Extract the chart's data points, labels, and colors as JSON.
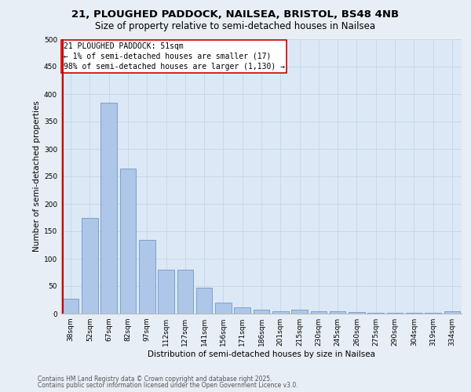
{
  "title_line1": "21, PLOUGHED PADDOCK, NAILSEA, BRISTOL, BS48 4NB",
  "title_line2": "Size of property relative to semi-detached houses in Nailsea",
  "xlabel": "Distribution of semi-detached houses by size in Nailsea",
  "ylabel": "Number of semi-detached properties",
  "categories": [
    "38sqm",
    "52sqm",
    "67sqm",
    "82sqm",
    "97sqm",
    "112sqm",
    "127sqm",
    "141sqm",
    "156sqm",
    "171sqm",
    "186sqm",
    "201sqm",
    "215sqm",
    "230sqm",
    "245sqm",
    "260sqm",
    "275sqm",
    "290sqm",
    "304sqm",
    "319sqm",
    "334sqm"
  ],
  "values": [
    27,
    175,
    385,
    265,
    135,
    80,
    80,
    47,
    20,
    12,
    7,
    5,
    7,
    5,
    5,
    3,
    2,
    2,
    2,
    1,
    5
  ],
  "bar_color": "#aec6e8",
  "bar_edge_color": "#5a8fc0",
  "highlight_color": "#cc0000",
  "annotation_title": "21 PLOUGHED PADDOCK: 51sqm",
  "annotation_line1": "← 1% of semi-detached houses are smaller (17)",
  "annotation_line2": "98% of semi-detached houses are larger (1,130) →",
  "annotation_box_color": "#ffffff",
  "annotation_box_edge": "#cc0000",
  "bg_color": "#e8eef5",
  "plot_bg_color": "#dce8f5",
  "grid_color": "#c8d8e8",
  "ylim": [
    0,
    500
  ],
  "yticks": [
    0,
    50,
    100,
    150,
    200,
    250,
    300,
    350,
    400,
    450,
    500
  ],
  "footer_line1": "Contains HM Land Registry data © Crown copyright and database right 2025.",
  "footer_line2": "Contains public sector information licensed under the Open Government Licence v3.0.",
  "title_fontsize": 9.5,
  "subtitle_fontsize": 8.5,
  "axis_label_fontsize": 7.5,
  "tick_fontsize": 6.5,
  "annotation_fontsize": 7,
  "footer_fontsize": 5.5
}
